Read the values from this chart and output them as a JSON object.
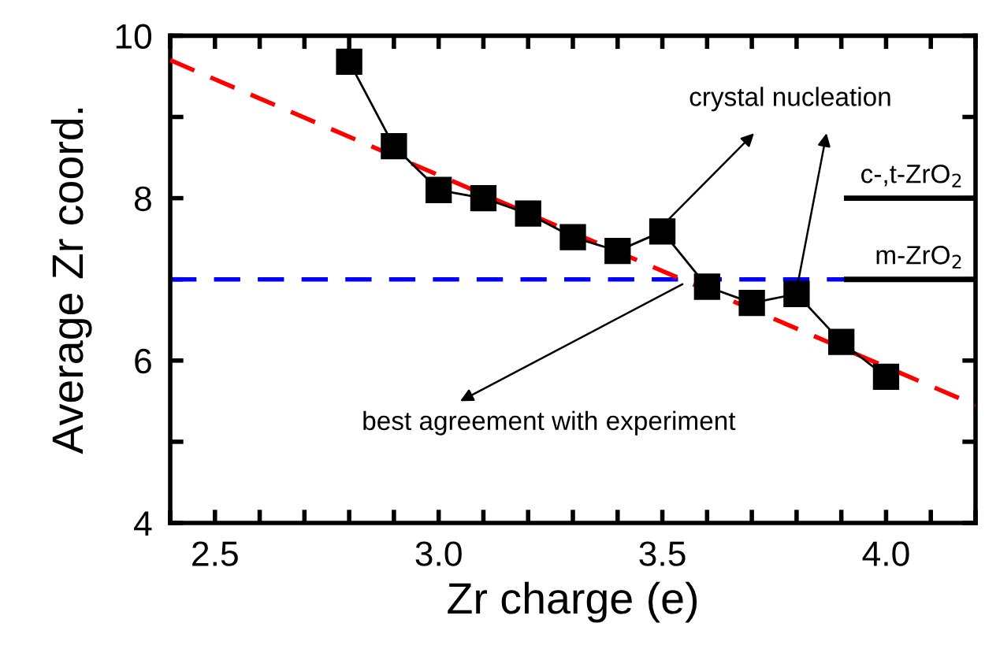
{
  "chart_data": {
    "type": "line",
    "xlabel": "Zr charge (e)",
    "ylabel": "Average Zr coord.",
    "xlim": [
      2.4,
      4.2
    ],
    "ylim": [
      4,
      10
    ],
    "xticks": [
      {
        "value": 2.4,
        "label": null
      },
      2.5,
      {
        "value": 2.6,
        "label": null
      },
      {
        "value": 2.7,
        "label": null
      },
      {
        "value": 2.8,
        "label": null
      },
      {
        "value": 2.9,
        "label": null
      },
      {
        "value": 3.0,
        "label": "3.0"
      },
      {
        "value": 3.1,
        "label": null
      },
      {
        "value": 3.2,
        "label": null
      },
      {
        "value": 3.3,
        "label": null
      },
      {
        "value": 3.4,
        "label": null
      },
      3.5,
      {
        "value": 3.6,
        "label": null
      },
      {
        "value": 3.7,
        "label": null
      },
      {
        "value": 3.8,
        "label": null
      },
      {
        "value": 3.9,
        "label": null
      },
      {
        "value": 4.0,
        "label": "4.0"
      },
      {
        "value": 4.1,
        "label": null
      },
      {
        "value": 4.2,
        "label": null
      }
    ],
    "yticks": [
      4,
      {
        "value": 5,
        "label": null
      },
      6,
      {
        "value": 7,
        "label": null
      },
      8,
      {
        "value": 9,
        "label": null
      },
      10
    ],
    "grid": false,
    "legend": false,
    "series": [
      {
        "color": "#ff0000",
        "line_style": "dashed",
        "marker": "none",
        "x": [
          2.4,
          4.2
        ],
        "values": [
          9.7,
          5.45
        ]
      },
      {
        "color": "#000000",
        "line_style": "solid",
        "marker": "square",
        "x": [
          2.8,
          2.9,
          3.0,
          3.1,
          3.2,
          3.3,
          3.4,
          3.5,
          3.6,
          3.7,
          3.8,
          3.9,
          4.0
        ],
        "values": [
          9.68,
          8.64,
          8.1,
          8.0,
          7.81,
          7.52,
          7.35,
          7.59,
          6.91,
          6.71,
          6.82,
          6.23,
          5.8
        ]
      }
    ],
    "ref_lines": [
      {
        "axis": "y",
        "value": 7,
        "color": "#0000ff",
        "line_style": "dashed"
      },
      {
        "axis": "y",
        "value": 8,
        "label": "c-,t-ZrO$_{2}$",
        "color": "#000000",
        "line_style": "solid"
      },
      {
        "axis": "y",
        "value": 7,
        "label": "m-ZrO$_{2}$",
        "color": "#000000",
        "line_style": "solid"
      }
    ],
    "annotations": [
      "crystal nucleation",
      "best agreement with experiment"
    ]
  }
}
